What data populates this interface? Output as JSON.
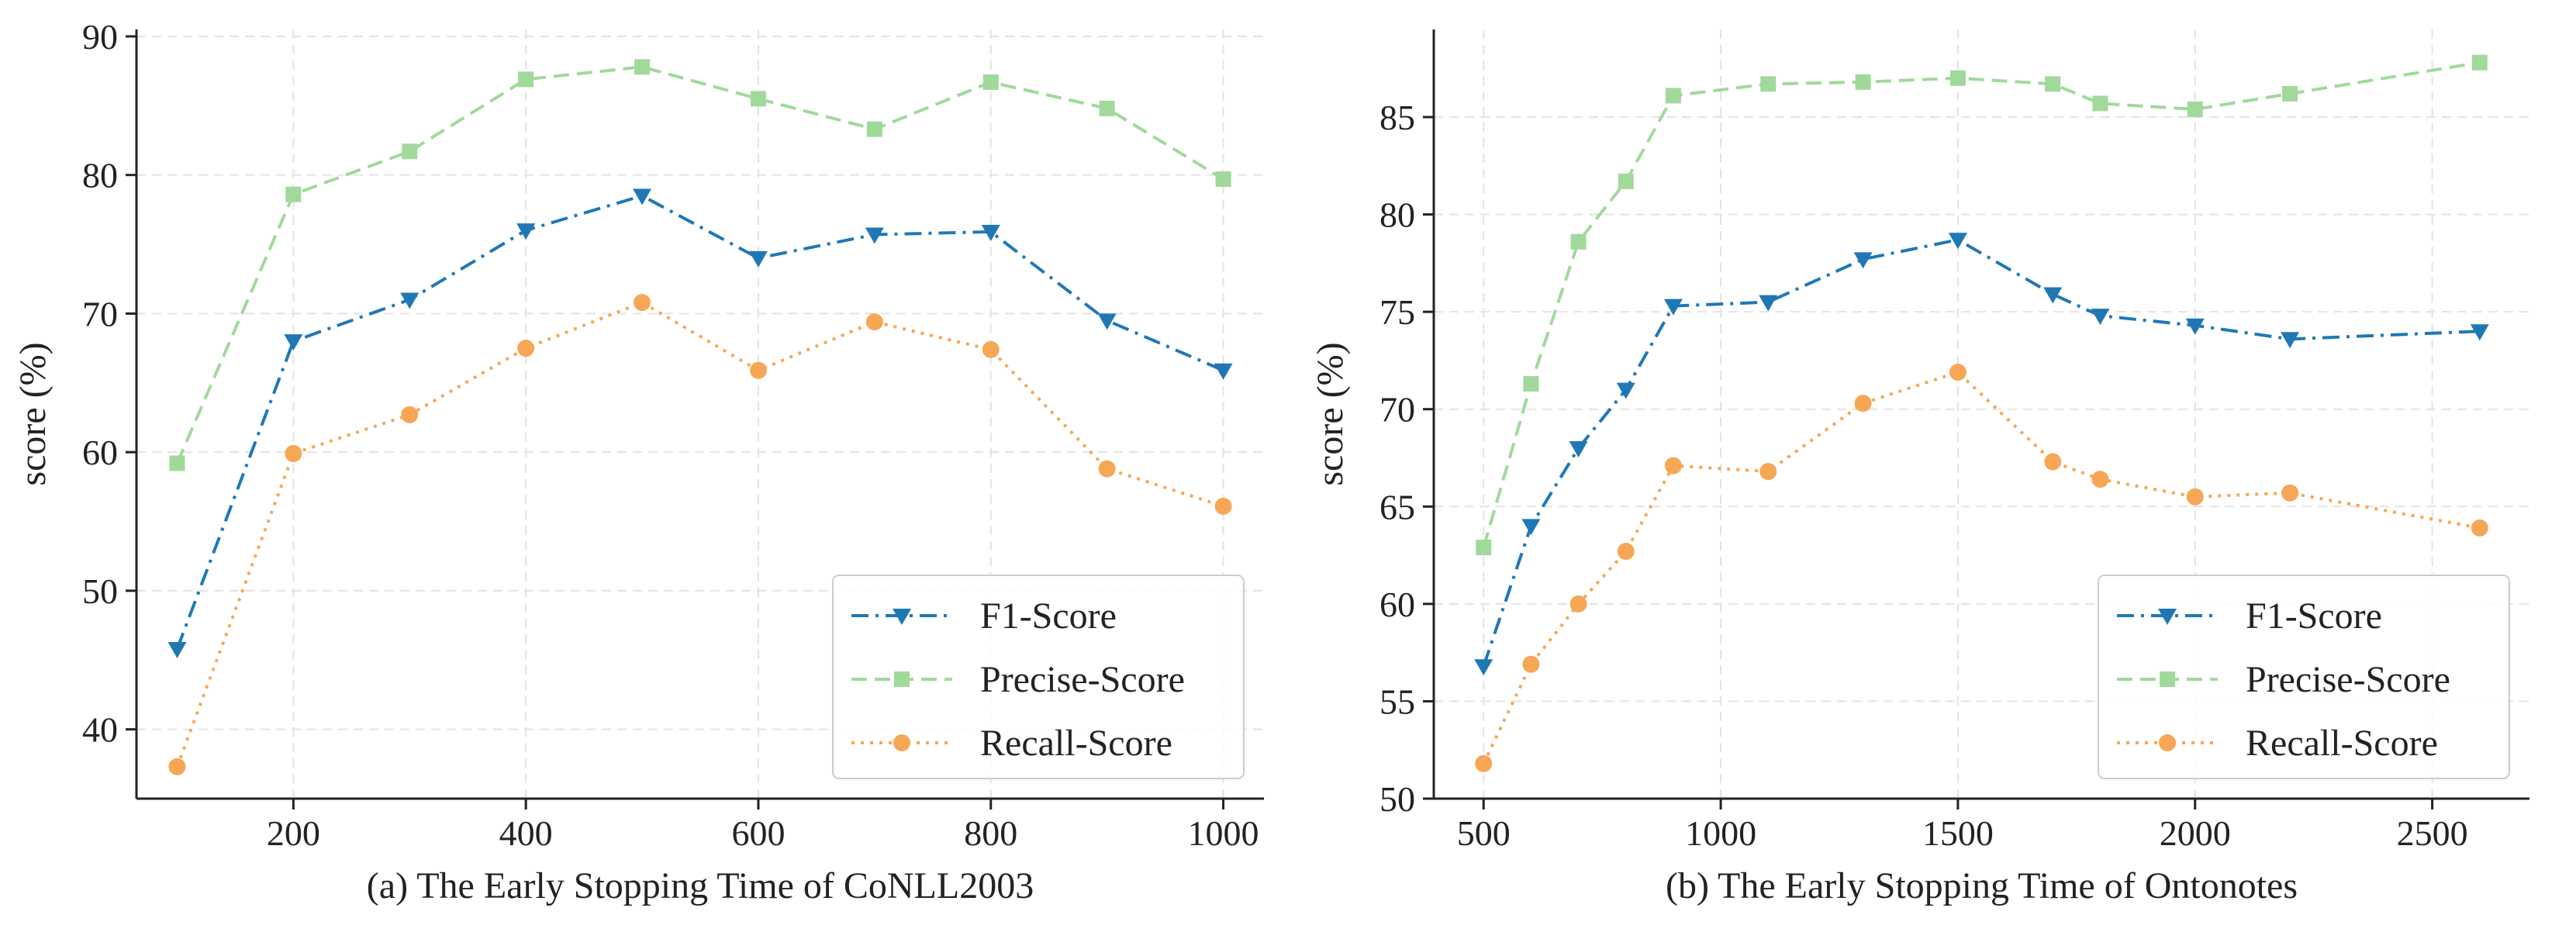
{
  "chart_data": [
    {
      "id": "a",
      "type": "line",
      "title": "",
      "xlabel": "(a) The Early Stopping Time of CoNLL2003",
      "ylabel": "score (%)",
      "x": [
        100,
        200,
        300,
        400,
        500,
        600,
        700,
        800,
        900,
        1000
      ],
      "xlim": [
        65,
        1035
      ],
      "ylim": [
        35,
        90.5
      ],
      "xticks": [
        200,
        400,
        600,
        800,
        1000
      ],
      "yticks": [
        40,
        50,
        60,
        70,
        80,
        90
      ],
      "grid": true,
      "legend_position": "lower-right",
      "series": [
        {
          "name": "F1-Score",
          "key": "f1",
          "color": "#1f78b4",
          "marker": "triangle-down",
          "linestyle": "dashdot",
          "values": [
            45.8,
            68.0,
            71.0,
            76.0,
            78.5,
            74.0,
            75.7,
            75.9,
            69.5,
            65.9
          ]
        },
        {
          "name": "Precise-Score",
          "key": "precise",
          "color": "#a1d99b",
          "marker": "square",
          "linestyle": "dashed",
          "values": [
            59.2,
            78.6,
            81.7,
            86.9,
            87.8,
            85.5,
            83.3,
            86.7,
            84.8,
            79.7
          ]
        },
        {
          "name": "Recall-Score",
          "key": "recall",
          "color": "#f6a756",
          "marker": "circle",
          "linestyle": "dotted",
          "values": [
            37.3,
            59.9,
            62.7,
            67.5,
            70.8,
            65.9,
            69.4,
            67.4,
            58.8,
            56.1
          ]
        }
      ]
    },
    {
      "id": "b",
      "type": "line",
      "title": "",
      "xlabel": "(b) The Early Stopping Time of Ontonotes",
      "ylabel": "score (%)",
      "x": [
        500,
        600,
        700,
        800,
        900,
        1100,
        1300,
        1500,
        1700,
        1800,
        2000,
        2200,
        2600
      ],
      "xlim": [
        395,
        2705
      ],
      "ylim": [
        50,
        89.5
      ],
      "xticks": [
        500,
        1000,
        1500,
        2000,
        2500
      ],
      "yticks": [
        50,
        55,
        60,
        65,
        70,
        75,
        80,
        85
      ],
      "grid": true,
      "legend_position": "lower-right",
      "series": [
        {
          "name": "F1-Score",
          "key": "f1",
          "color": "#1f78b4",
          "marker": "triangle-down",
          "linestyle": "dashdot",
          "values": [
            56.8,
            64.0,
            68.0,
            71.0,
            75.3,
            75.5,
            77.7,
            78.7,
            75.9,
            74.8,
            74.3,
            73.6,
            74.0
          ]
        },
        {
          "name": "Precise-Score",
          "key": "precise",
          "color": "#a1d99b",
          "marker": "square",
          "linestyle": "dashed",
          "values": [
            62.9,
            71.3,
            78.6,
            81.7,
            86.1,
            86.7,
            86.8,
            87.0,
            86.7,
            85.7,
            85.4,
            86.2,
            87.8
          ]
        },
        {
          "name": "Recall-Score",
          "key": "recall",
          "color": "#f6a756",
          "marker": "circle",
          "linestyle": "dotted",
          "values": [
            51.8,
            56.9,
            60.0,
            62.7,
            67.1,
            66.8,
            70.3,
            71.9,
            67.3,
            66.4,
            65.5,
            65.7,
            63.9
          ]
        }
      ]
    }
  ]
}
